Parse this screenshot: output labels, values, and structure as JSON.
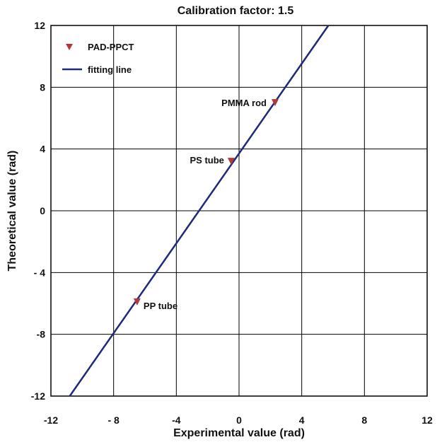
{
  "chart_data": {
    "type": "scatter",
    "title": "Calibration factor: 1.5",
    "xlabel": "Experimental value (rad)",
    "ylabel": "Theoretical value (rad)",
    "xlim": [
      -12,
      12
    ],
    "ylim": [
      -12,
      12
    ],
    "x_ticks": [
      -12,
      -8,
      -4,
      0,
      4,
      8,
      12
    ],
    "y_ticks": [
      -12,
      -8,
      -4,
      0,
      4,
      8,
      12
    ],
    "x_tick_labels": [
      "-12",
      "- 8",
      "-4",
      "0",
      "4",
      "8",
      "12"
    ],
    "y_tick_labels": [
      "-12",
      "-8",
      "- 4",
      "0",
      "4",
      "8",
      "12"
    ],
    "grid": true,
    "legend_position": "top-left",
    "series": [
      {
        "name": "PAD-PPCT",
        "kind": "scatter",
        "marker": "triangle-down",
        "color": "#b03a3a",
        "points": [
          {
            "x": -6.5,
            "y": -5.9,
            "label": "PP tube"
          },
          {
            "x": -0.5,
            "y": 3.2,
            "label": "PS tube"
          },
          {
            "x": 2.3,
            "y": 7.0,
            "label": "PMMA rod"
          }
        ]
      },
      {
        "name": "fitting line",
        "kind": "line",
        "color": "#1f2a7a",
        "x": [
          -10.8,
          5.7
        ],
        "y": [
          -12,
          12
        ]
      }
    ]
  }
}
